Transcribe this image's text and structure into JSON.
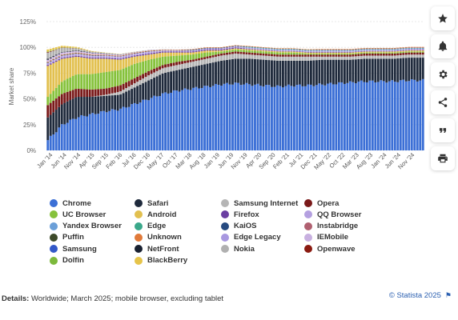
{
  "chart_data": {
    "type": "bar",
    "stacked": true,
    "ylabel": "Market share",
    "yticks": [
      "0%",
      "25%",
      "50%",
      "75%",
      "100%",
      "125%"
    ],
    "ylim": [
      0,
      125
    ],
    "grid": true,
    "legend_position": "bottom",
    "xtick_labels": [
      "Jan '14",
      "Jun '14",
      "Nov '14",
      "Apr '15",
      "Sep '15",
      "Feb '16",
      "Jul '16",
      "Dec '16",
      "May '17",
      "Oct '17",
      "Mar '18",
      "Aug '18",
      "Jan '19",
      "Jun '19",
      "Nov '19",
      "Apr '20",
      "Sep '20",
      "Feb '21",
      "Jul '21",
      "Dec '21",
      "May '22",
      "Oct '22",
      "Mar '23",
      "Aug '23",
      "Jan '24",
      "Jun '24",
      "Nov '24"
    ],
    "x_start": "Jan '14",
    "x_end": "Mar '25",
    "series": [
      {
        "name": "Chrome",
        "color": "#3b6fd6",
        "values": [
          10,
          25,
          32,
          35,
          38,
          40,
          45,
          50,
          55,
          58,
          60,
          62,
          64,
          65,
          64,
          63,
          62,
          63,
          63,
          64,
          65,
          66,
          67,
          67,
          67,
          68,
          68
        ]
      },
      {
        "name": "Safari",
        "color": "#1f2a3c",
        "values": [
          22,
          20,
          20,
          17,
          15,
          14,
          16,
          18,
          20,
          20,
          21,
          22,
          23,
          24,
          25,
          25,
          25,
          24,
          24,
          24,
          23,
          22,
          22,
          22,
          22,
          22,
          22
        ]
      },
      {
        "name": "Samsung Internet",
        "color": "#b5b5b5",
        "values": [
          0,
          0,
          0,
          0,
          1,
          3,
          4,
          5,
          5,
          5,
          5,
          5,
          5,
          5,
          4,
          4,
          4,
          4,
          4,
          3,
          3,
          3,
          3,
          3,
          3,
          3,
          3
        ]
      },
      {
        "name": "Opera",
        "color": "#7a1a1a",
        "values": [
          12,
          10,
          8,
          7,
          6,
          6,
          5,
          4,
          3,
          3,
          2,
          2,
          2,
          2,
          2,
          2,
          2,
          2,
          2,
          2,
          2,
          2,
          2,
          2,
          2,
          2,
          2
        ]
      },
      {
        "name": "UC Browser",
        "color": "#86c23c",
        "values": [
          8,
          12,
          14,
          15,
          16,
          15,
          14,
          11,
          8,
          6,
          5,
          4,
          2,
          2,
          2,
          2,
          2,
          2,
          1,
          1,
          1,
          1,
          1,
          1,
          1,
          1,
          1
        ]
      },
      {
        "name": "Android",
        "color": "#e2c04f",
        "values": [
          30,
          22,
          17,
          15,
          13,
          10,
          7,
          5,
          4,
          3,
          2,
          2,
          1,
          1,
          1,
          1,
          1,
          1,
          1,
          1,
          1,
          1,
          1,
          1,
          1,
          1,
          1
        ]
      },
      {
        "name": "Firefox",
        "color": "#6a3ea1",
        "values": [
          1,
          1,
          1,
          1,
          1,
          1,
          1,
          1,
          1,
          1,
          1,
          1,
          1,
          1,
          0.5,
          0.5,
          0.5,
          0.5,
          0.5,
          0.5,
          0.5,
          0.5,
          0.5,
          0.5,
          0.5,
          0.5,
          0.5
        ]
      },
      {
        "name": "QQ Browser",
        "color": "#b4a0e0",
        "values": [
          2,
          2,
          2,
          2,
          2,
          2,
          2,
          2,
          1,
          1,
          1,
          1,
          1,
          1,
          1,
          1,
          1,
          1,
          1,
          1,
          1,
          1,
          1,
          1,
          1,
          1,
          1
        ]
      },
      {
        "name": "Yandex Browser",
        "color": "#6b9fd8",
        "values": [
          0,
          0,
          0,
          0,
          0,
          0,
          0,
          0,
          0,
          0,
          0,
          0,
          0,
          0,
          0.5,
          0.5,
          0.5,
          0.5,
          0.5,
          0.5,
          0.5,
          0.5,
          0.5,
          0.5,
          0.5,
          0.5,
          0.5
        ]
      },
      {
        "name": "Edge",
        "color": "#3aa88a",
        "values": [
          0,
          0,
          0,
          0,
          0,
          0,
          0,
          0,
          0,
          0,
          0,
          0,
          0,
          0,
          0.3,
          0.3,
          0.3,
          0.3,
          0.3,
          0.3,
          0.3,
          0.3,
          0.3,
          0.3,
          0.3,
          0.3,
          0.3
        ]
      },
      {
        "name": "KaiOS",
        "color": "#264a80",
        "values": [
          0,
          0,
          0,
          0,
          0,
          0,
          0,
          0,
          0,
          0,
          0.5,
          0.5,
          0.5,
          0.5,
          0.3,
          0.2,
          0.2,
          0.2,
          0.2,
          0.2,
          0.2,
          0.2,
          0.2,
          0.2,
          0.2,
          0.2,
          0.2
        ]
      },
      {
        "name": "Instabridge",
        "color": "#b06070",
        "values": [
          0,
          0,
          0,
          0,
          0,
          0,
          0,
          0,
          0,
          0,
          0,
          0,
          0,
          0,
          0,
          0,
          0,
          0,
          0,
          0.3,
          0.3,
          0.3,
          0.3,
          0.3,
          0.3,
          0.3,
          0.3
        ]
      },
      {
        "name": "Puffin",
        "color": "#3d4a2a",
        "values": [
          0.5,
          0.5,
          0.5,
          0.5,
          0.3,
          0.3,
          0.3,
          0.3,
          0.2,
          0.2,
          0.2,
          0.1,
          0.1,
          0.1,
          0.1,
          0.1,
          0.1,
          0.1,
          0.1,
          0.1,
          0.1,
          0.1,
          0.1,
          0.1,
          0.1,
          0.1,
          0.1
        ]
      },
      {
        "name": "Unknown",
        "color": "#e07a3a",
        "values": [
          0.5,
          0.5,
          0.5,
          0.5,
          0.5,
          0.5,
          0.5,
          0.5,
          0.5,
          0.5,
          0.5,
          0.5,
          0.5,
          0.5,
          0.5,
          0.5,
          0.5,
          0.5,
          0.5,
          0.5,
          0.5,
          0.5,
          0.5,
          0.5,
          0.5,
          0.5,
          0.5
        ]
      },
      {
        "name": "Edge Legacy",
        "color": "#a898e0",
        "values": [
          0,
          0,
          0,
          0,
          0,
          0,
          0,
          0,
          0,
          0,
          0,
          0,
          0,
          0,
          0,
          0,
          0,
          0,
          0,
          0,
          0,
          0,
          0,
          0,
          0,
          0,
          0
        ]
      },
      {
        "name": "IEMobile",
        "color": "#c8b0e0",
        "values": [
          2,
          2,
          1.5,
          1.5,
          1,
          1,
          0.5,
          0.5,
          0.2,
          0.2,
          0.1,
          0,
          0,
          0,
          0,
          0,
          0,
          0,
          0,
          0,
          0,
          0,
          0,
          0,
          0,
          0,
          0
        ]
      },
      {
        "name": "Samsung",
        "color": "#3258c8",
        "values": [
          0,
          0,
          0,
          0,
          0,
          0,
          0,
          0,
          0,
          0,
          0,
          0,
          0,
          0,
          0,
          0,
          0,
          0,
          0,
          0,
          0,
          0,
          0,
          0,
          0,
          0,
          0
        ]
      },
      {
        "name": "NetFront",
        "color": "#182030",
        "values": [
          1,
          0.5,
          0.5,
          0.3,
          0.3,
          0.2,
          0.1,
          0.1,
          0.1,
          0,
          0,
          0,
          0,
          0,
          0,
          0,
          0,
          0,
          0,
          0,
          0,
          0,
          0,
          0,
          0,
          0,
          0
        ]
      },
      {
        "name": "Nokia",
        "color": "#b0b0b0",
        "values": [
          6,
          4,
          2,
          1,
          0.5,
          0.3,
          0.2,
          0.1,
          0,
          0,
          0,
          0,
          0,
          0,
          0,
          0,
          0,
          0,
          0,
          0,
          0,
          0,
          0,
          0,
          0,
          0,
          0
        ]
      },
      {
        "name": "Openwave",
        "color": "#8a1a10",
        "values": [
          0.5,
          0.3,
          0.2,
          0.1,
          0,
          0,
          0,
          0,
          0,
          0,
          0,
          0,
          0,
          0,
          0,
          0,
          0,
          0,
          0,
          0,
          0,
          0,
          0,
          0,
          0,
          0,
          0
        ]
      },
      {
        "name": "Dolfin",
        "color": "#7cb93c",
        "values": [
          0.5,
          0.3,
          0.2,
          0.1,
          0,
          0,
          0,
          0,
          0,
          0,
          0,
          0,
          0,
          0,
          0,
          0,
          0,
          0,
          0,
          0,
          0,
          0,
          0,
          0,
          0,
          0,
          0
        ]
      },
      {
        "name": "BlackBerry",
        "color": "#e6c44a",
        "values": [
          2,
          1.5,
          1,
          0.5,
          0.3,
          0.2,
          0.1,
          0,
          0,
          0,
          0,
          0,
          0,
          0,
          0,
          0,
          0,
          0,
          0,
          0,
          0,
          0,
          0,
          0,
          0,
          0,
          0
        ]
      }
    ]
  },
  "sidebar": [
    {
      "name": "favorite-button",
      "icon": "star-icon"
    },
    {
      "name": "notification-button",
      "icon": "bell-icon"
    },
    {
      "name": "settings-button",
      "icon": "gear-icon"
    },
    {
      "name": "share-button",
      "icon": "share-icon"
    },
    {
      "name": "cite-button",
      "icon": "quote-icon"
    },
    {
      "name": "print-button",
      "icon": "print-icon"
    }
  ],
  "details": {
    "label": "Details:",
    "text": "Worldwide; March 2025; mobile browser, excluding tablet"
  },
  "credit": {
    "text": "© Statista 2025",
    "icon": "flag-icon"
  }
}
